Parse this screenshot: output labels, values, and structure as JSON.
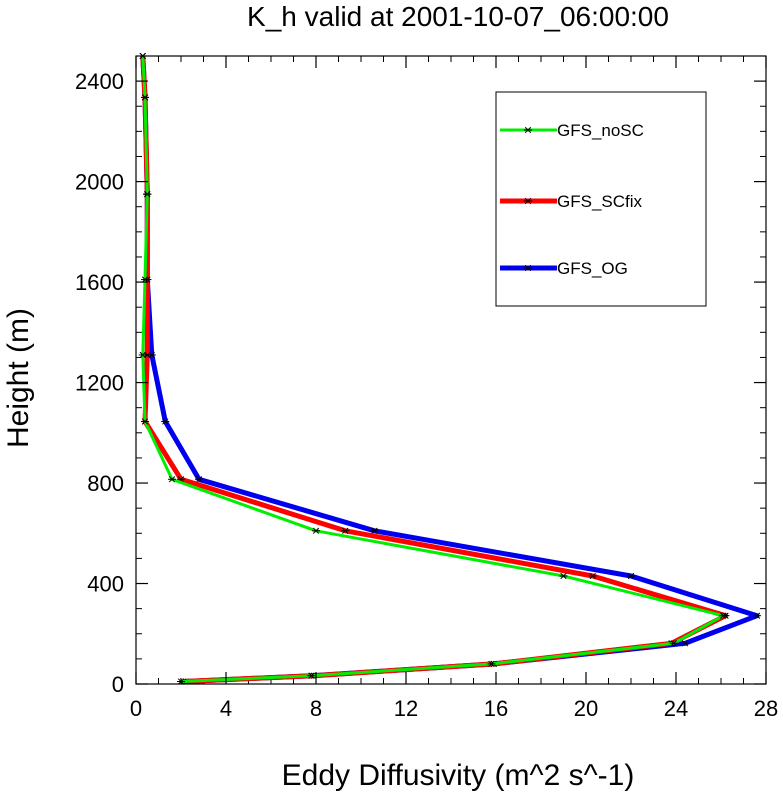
{
  "chart_data": {
    "type": "line",
    "title": "K_h valid at 2001-10-07_06:00:00",
    "xlabel": "Eddy Diffusivity (m^2 s^-1)",
    "ylabel": "Height (m)",
    "xlim": [
      0,
      28
    ],
    "ylim": [
      0,
      2500
    ],
    "xticks": [
      0,
      4,
      8,
      12,
      16,
      20,
      24,
      28
    ],
    "yticks": [
      0,
      400,
      800,
      1200,
      1600,
      2000,
      2400
    ],
    "legend_position": "top-right",
    "marker": "asterisk",
    "series": [
      {
        "name": "GFS_noSC",
        "color": "#00ee00",
        "points": [
          [
            2.0,
            10
          ],
          [
            7.8,
            33
          ],
          [
            15.8,
            80
          ],
          [
            23.9,
            162
          ],
          [
            26.1,
            272
          ],
          [
            19.0,
            430
          ],
          [
            8.0,
            610
          ],
          [
            1.6,
            815
          ],
          [
            0.4,
            1045
          ],
          [
            0.3,
            1310
          ],
          [
            0.4,
            1610
          ],
          [
            0.5,
            1950
          ],
          [
            0.4,
            2335
          ],
          [
            0.3,
            2500
          ]
        ]
      },
      {
        "name": "GFS_SCfix",
        "color": "#ff0000",
        "points": [
          [
            2.1,
            10
          ],
          [
            7.9,
            33
          ],
          [
            15.9,
            80
          ],
          [
            23.8,
            162
          ],
          [
            26.2,
            272
          ],
          [
            20.3,
            430
          ],
          [
            9.3,
            610
          ],
          [
            2.0,
            815
          ],
          [
            0.4,
            1045
          ],
          [
            0.5,
            1310
          ],
          [
            0.5,
            1610
          ],
          [
            0.5,
            1950
          ],
          [
            0.4,
            2335
          ],
          [
            0.3,
            2500
          ]
        ]
      },
      {
        "name": "GFS_OG",
        "color": "#0000ee",
        "points": [
          [
            2.2,
            10
          ],
          [
            7.8,
            33
          ],
          [
            15.9,
            80
          ],
          [
            24.4,
            162
          ],
          [
            27.6,
            272
          ],
          [
            22.0,
            430
          ],
          [
            10.6,
            610
          ],
          [
            2.8,
            815
          ],
          [
            1.3,
            1045
          ],
          [
            0.7,
            1310
          ],
          [
            0.5,
            1610
          ],
          [
            0.5,
            1950
          ],
          [
            0.4,
            2335
          ],
          [
            0.3,
            2500
          ]
        ]
      }
    ]
  }
}
